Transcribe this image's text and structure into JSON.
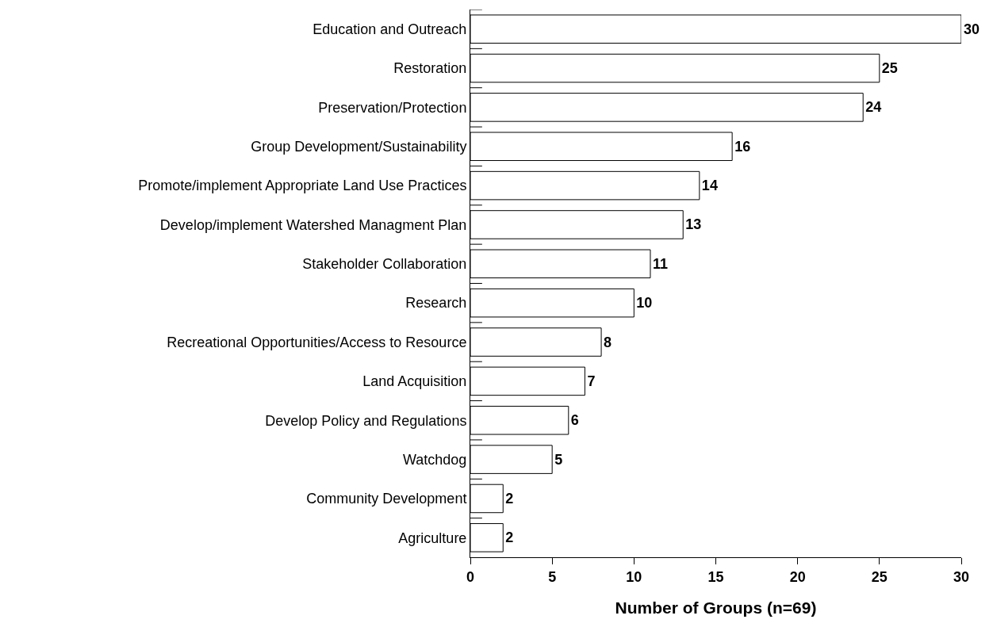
{
  "chart_data": {
    "type": "bar",
    "orientation": "horizontal",
    "xlabel": "Number of Groups (n=69)",
    "categories": [
      "Education and Outreach",
      "Restoration",
      "Preservation/Protection",
      "Group Development/Sustainability",
      "Promote/implement Appropriate Land Use Practices",
      "Develop/implement Watershed Managment Plan",
      "Stakeholder Collaboration",
      "Research",
      "Recreational Opportunities/Access to Resource",
      "Land Acquisition",
      "Develop Policy and Regulations",
      "Watchdog",
      "Community Development",
      "Agriculture"
    ],
    "values": [
      30,
      25,
      24,
      16,
      14,
      13,
      11,
      10,
      8,
      7,
      6,
      5,
      2,
      2
    ],
    "color": "#ffffff",
    "xlim": [
      0,
      30
    ],
    "xticks": [
      0,
      5,
      10,
      15,
      20,
      25,
      30
    ],
    "data_labels": true,
    "grid": false,
    "legend": false
  }
}
